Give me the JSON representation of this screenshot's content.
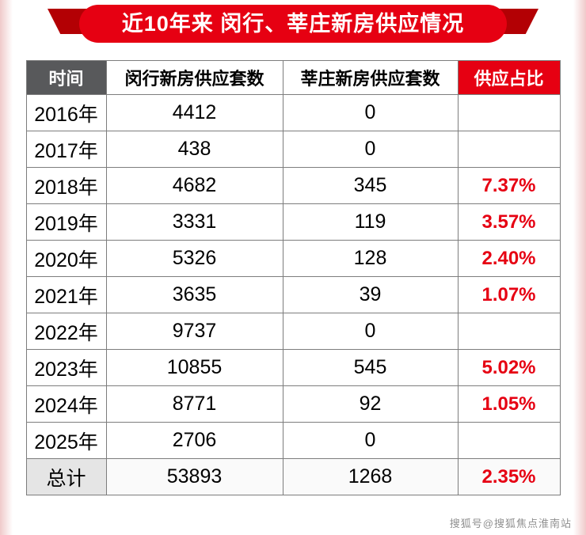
{
  "banner": {
    "title": "近10年来 闵行、莘庄新房供应情况"
  },
  "chart_data": {
    "type": "table",
    "title": "近10年来 闵行、莘庄新房供应情况",
    "columns": [
      "时间",
      "闵行新房供应套数",
      "莘庄新房供应套数",
      "供应占比"
    ],
    "rows": [
      [
        "2016年",
        "4412",
        "0",
        ""
      ],
      [
        "2017年",
        "438",
        "0",
        ""
      ],
      [
        "2018年",
        "4682",
        "345",
        "7.37%"
      ],
      [
        "2019年",
        "3331",
        "119",
        "3.57%"
      ],
      [
        "2020年",
        "5326",
        "128",
        "2.40%"
      ],
      [
        "2021年",
        "3635",
        "39",
        "1.07%"
      ],
      [
        "2022年",
        "9737",
        "0",
        ""
      ],
      [
        "2023年",
        "10855",
        "545",
        "5.02%"
      ],
      [
        "2024年",
        "8771",
        "92",
        "1.05%"
      ],
      [
        "2025年",
        "2706",
        "0",
        ""
      ],
      [
        "总计",
        "53893",
        "1268",
        "2.35%"
      ]
    ]
  },
  "watermark": "搜狐号@搜狐焦点淮南站",
  "colors": {
    "accent_red": "#e60012",
    "ribbon_dark_red": "#b30004",
    "header_gray": "#58595b",
    "border_gray": "#7d7d7d"
  }
}
